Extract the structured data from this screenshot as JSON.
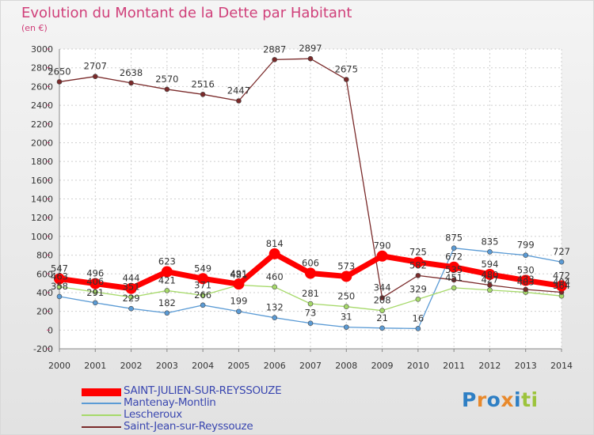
{
  "chart_data": {
    "type": "line",
    "title": "Evolution du Montant de la Dette par Habitant",
    "subtitle": "(en €)",
    "x": [
      "2000",
      "2001",
      "2002",
      "2003",
      "2004",
      "2005",
      "2006",
      "2007",
      "2008",
      "2009",
      "2010",
      "2011",
      "2012",
      "2013",
      "2014"
    ],
    "ylim": [
      -200,
      3000
    ],
    "yticks": [
      -200,
      0,
      200,
      400,
      600,
      800,
      1000,
      1200,
      1400,
      1600,
      1800,
      2000,
      2200,
      2400,
      2600,
      2800,
      3000
    ],
    "grid": true,
    "legend_position": "bottom-left",
    "series": [
      {
        "name": "SAINT-JULIEN-SUR-REYSSOUZE",
        "color": "#ff0000",
        "values": [
          547,
          496,
          444,
          623,
          549,
          491,
          814,
          606,
          573,
          790,
          725,
          672,
          594,
          530,
          472
        ],
        "labels": [
          "547",
          "496",
          "444",
          "623",
          "549",
          "491",
          "814",
          "606",
          "573",
          "790",
          "725",
          "672",
          "594",
          "530",
          "472"
        ]
      },
      {
        "name": "Mantenay-Montlin",
        "color": "#5b9bd5",
        "values": [
          358,
          291,
          229,
          182,
          266,
          199,
          132,
          73,
          31,
          21,
          16,
          875,
          835,
          799,
          727
        ],
        "labels": [
          "358",
          "291",
          "229",
          "182",
          "266",
          "199",
          "132",
          "73",
          "31",
          "21",
          "16",
          "875",
          "835",
          "799",
          "727"
        ]
      },
      {
        "name": "Lescheroux",
        "color": "#a6d96a",
        "values": [
          463,
          406,
          351,
          421,
          371,
          481,
          460,
          281,
          250,
          208,
          329,
          451,
          427,
          403,
          364
        ],
        "labels": [
          "463",
          "406",
          "351",
          "421",
          "371",
          "481",
          "460",
          "281",
          "250",
          "208",
          "329",
          "451",
          "427",
          "403",
          "364"
        ]
      },
      {
        "name": "Saint-Jean-sur-Reyssouze",
        "color": "#7a2a2a",
        "values": [
          2650,
          2707,
          2638,
          2570,
          2516,
          2447,
          2887,
          2897,
          2675,
          344,
          582,
          535,
          480,
          433,
          404
        ],
        "labels": [
          "2650",
          "2707",
          "2638",
          "2570",
          "2516",
          "2447",
          "2887",
          "2897",
          "2675",
          "344",
          "582",
          "535",
          "480",
          "433",
          "404"
        ]
      }
    ]
  },
  "logo": {
    "text": "Proxiti",
    "letters": [
      "P",
      "r",
      "o",
      "x",
      "i",
      "t",
      "i"
    ],
    "colors": [
      "#2e7fc4",
      "#e8892c",
      "#2e7fc4",
      "#e8892c",
      "#2e7fc4",
      "#9cc33b",
      "#9cc33b"
    ]
  }
}
